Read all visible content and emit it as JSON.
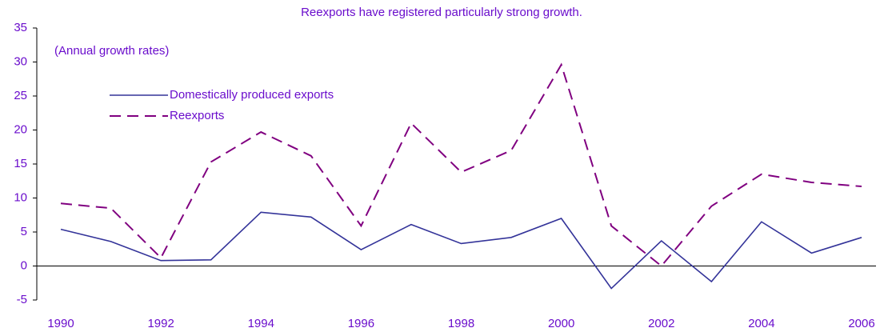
{
  "chart_data": {
    "type": "line",
    "title": "Reexports have registered particularly strong growth.",
    "annotation": "(Annual growth rates)",
    "x": [
      1990,
      1991,
      1992,
      1993,
      1994,
      1995,
      1996,
      1997,
      1998,
      1999,
      2000,
      2001,
      2002,
      2003,
      2004,
      2005,
      2006
    ],
    "series": [
      {
        "name": "Domestically produced exports",
        "color": "#333399",
        "dash": "solid",
        "values": [
          5.4,
          3.6,
          0.8,
          0.9,
          7.9,
          7.2,
          2.4,
          6.1,
          3.3,
          4.2,
          7.0,
          -3.3,
          3.7,
          -2.3,
          6.5,
          1.9,
          4.2
        ]
      },
      {
        "name": "Reexports",
        "color": "#800080",
        "dash": "dashed",
        "values": [
          9.2,
          8.5,
          1.2,
          15.3,
          19.7,
          16.2,
          5.9,
          21.0,
          13.8,
          17.0,
          29.6,
          5.9,
          0.0,
          8.8,
          13.5,
          12.3,
          11.7
        ]
      }
    ],
    "xlim": [
      1990,
      2006
    ],
    "xticks": [
      1990,
      1992,
      1994,
      1996,
      1998,
      2000,
      2002,
      2004,
      2006
    ],
    "ylim": [
      -5,
      35
    ],
    "yticks": [
      -5,
      0,
      5,
      10,
      15,
      20,
      25,
      30,
      35
    ],
    "grid": false
  }
}
